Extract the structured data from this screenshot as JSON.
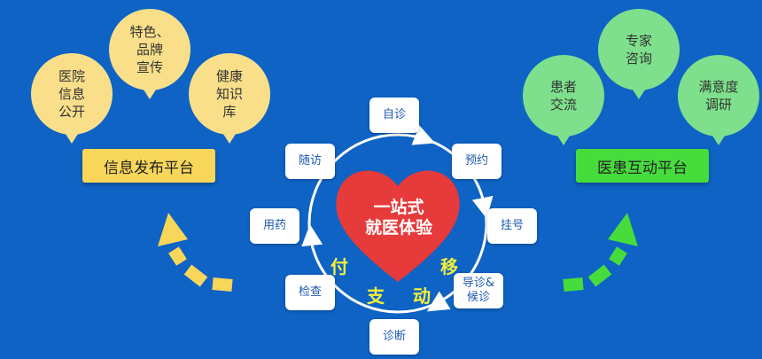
{
  "colors": {
    "background": "#0e63c4",
    "yellow": "#f8d65a",
    "green": "#46dc3c",
    "heart": "#e73a3a"
  },
  "left": {
    "bubbles": [
      "医院\n信息\n公开",
      "特色、\n品牌\n宣传",
      "健康\n知识\n库"
    ],
    "platform": "信息发布平台"
  },
  "right": {
    "bubbles": [
      "患者\n交流",
      "专家\n咨询",
      "满意度\n调研"
    ],
    "platform": "医患互动平台"
  },
  "center": {
    "heart_text": "一站式\n就医体验",
    "steps": [
      "自诊",
      "预约",
      "挂号",
      "导诊&\n候诊",
      "诊断",
      "检查",
      "用药",
      "随访"
    ],
    "mobile_pay": [
      "付",
      "移",
      "支",
      "动"
    ]
  }
}
